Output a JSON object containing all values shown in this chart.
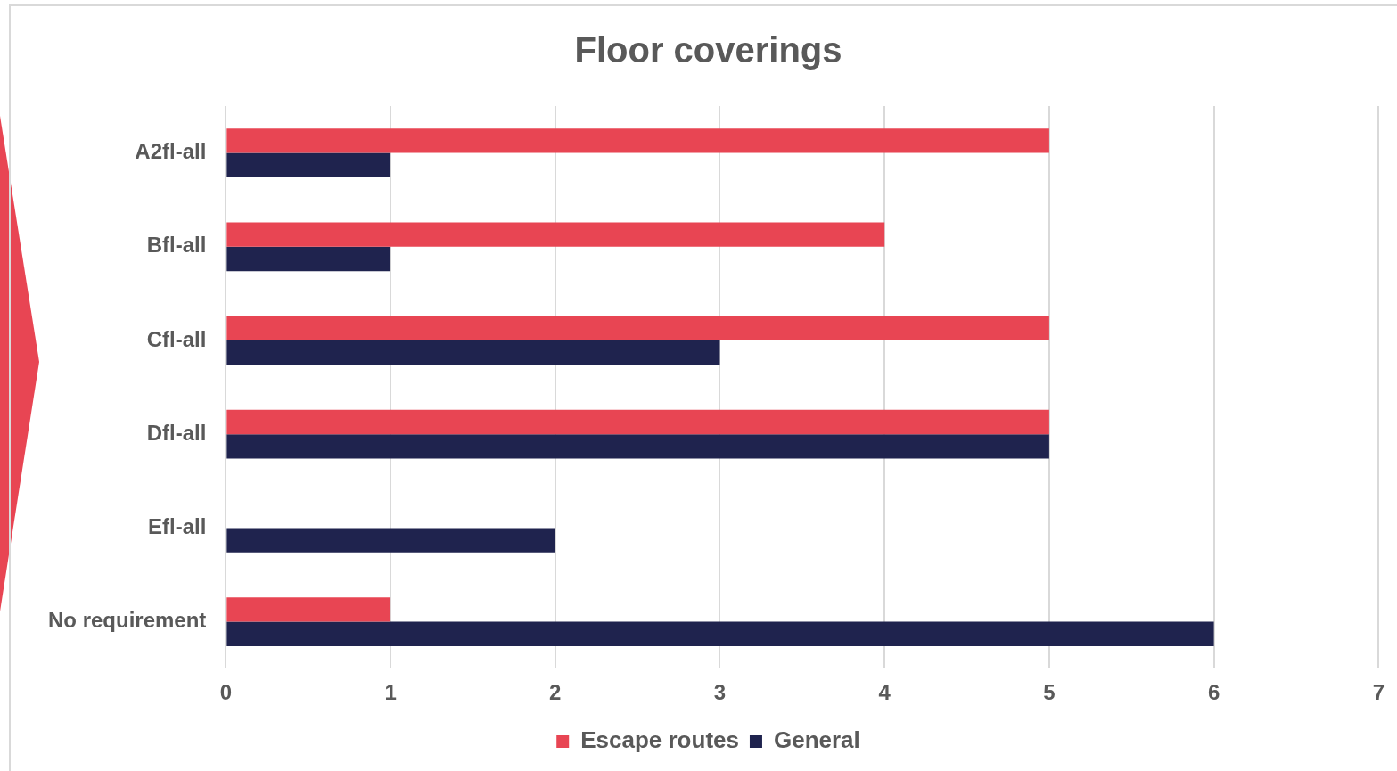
{
  "chart_data": {
    "type": "bar",
    "orientation": "horizontal",
    "title": "Floor coverings",
    "categories": [
      "A2fl-all",
      "Bfl-all",
      "Cfl-all",
      "Dfl-all",
      "Efl-all",
      "No requirement"
    ],
    "series": [
      {
        "name": "Escape routes",
        "color": "#e84553",
        "values": [
          5,
          4,
          5,
          5,
          0,
          1
        ]
      },
      {
        "name": "General",
        "color": "#1f234e",
        "values": [
          1,
          1,
          3,
          5,
          2,
          6
        ]
      }
    ],
    "xlim": [
      0,
      7
    ],
    "xticks": [
      0,
      1,
      2,
      3,
      4,
      5,
      6,
      7
    ],
    "grid": "x",
    "legend": "bottom"
  }
}
